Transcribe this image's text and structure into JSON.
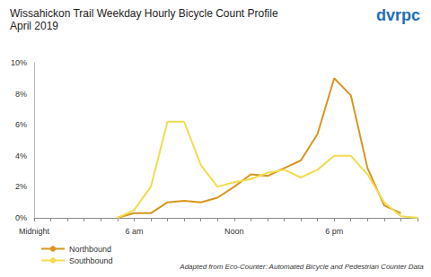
{
  "chart_data": {
    "type": "line",
    "title": "Wissahickon Trail Weekday Hourly Bicycle Count Profile",
    "subtitle": "April 2019",
    "annotations": [
      "Adapted from Eco-Counter: Automated Bicycle and Pedestrian Counter Data",
      "dvrpc"
    ],
    "categories": [
      "Midnight",
      null,
      null,
      null,
      null,
      null,
      "6 am",
      null,
      null,
      null,
      null,
      null,
      "Noon",
      null,
      null,
      null,
      null,
      null,
      "6 pm",
      null,
      null,
      null,
      null,
      null
    ],
    "series": [
      {
        "name": "Northbound",
        "color": "#d9951e",
        "values": [
          null,
          null,
          null,
          null,
          null,
          0,
          0.3,
          0.3,
          1.0,
          1.1,
          1.0,
          1.3,
          2.0,
          2.8,
          2.7,
          3.2,
          3.7,
          5.4,
          9.0,
          7.9,
          3.2,
          0.8,
          0.3,
          null
        ]
      },
      {
        "name": "Southbound",
        "color": "#f3dc4c",
        "values": [
          null,
          null,
          null,
          null,
          null,
          0,
          0.5,
          2.0,
          6.2,
          6.2,
          3.4,
          2.0,
          2.3,
          2.5,
          2.9,
          3.1,
          2.6,
          3.1,
          4.0,
          4.0,
          2.8,
          1.0,
          0.1,
          0
        ]
      }
    ],
    "ylim": [
      0,
      10
    ],
    "yticks": [
      {
        "value": 0,
        "label": "0%"
      },
      {
        "value": 2,
        "label": "2%"
      },
      {
        "value": 4,
        "label": "4%"
      },
      {
        "value": 6,
        "label": "6%"
      },
      {
        "value": 8,
        "label": "8%"
      },
      {
        "value": 10,
        "label": "10%"
      }
    ],
    "grid": false,
    "legend": "lower left"
  }
}
